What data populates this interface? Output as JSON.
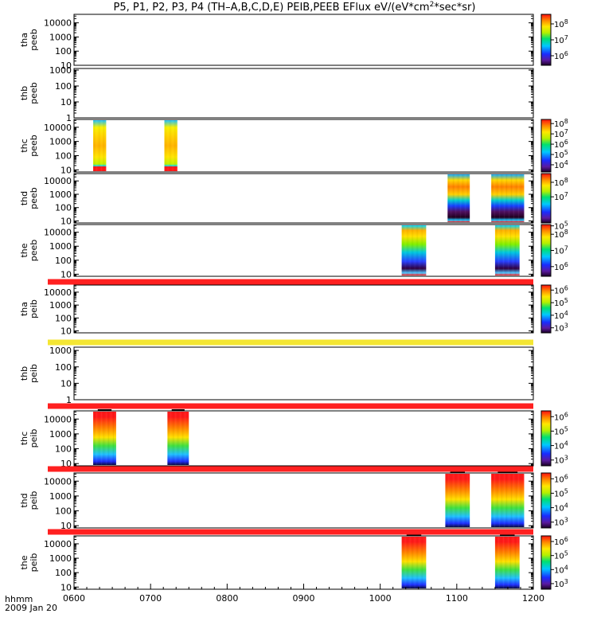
{
  "chart_data": {
    "type": "heatmap",
    "title_main": "P5, P1, P2, P3, P4 (TH–A,B,C,D,E) PEIB,PEEB EFlux eV/(eV*cm",
    "title_sup": "2",
    "title_tail": "*sec*sr)",
    "x_axis": {
      "label": "hhmm",
      "date": "2009 Jan 20",
      "ticks": [
        "0600",
        "0700",
        "0800",
        "0900",
        "1000",
        "1100",
        "1200"
      ],
      "range_hours": [
        6,
        12
      ]
    },
    "panels": [
      {
        "probe": "tha",
        "product": "peeb",
        "yticks": [
          "10",
          "100",
          "1000",
          "10000"
        ],
        "ylog_range": [
          1,
          4.6
        ],
        "cbar": {
          "labels": [
            "10^6",
            "10^7",
            "10^8"
          ],
          "range_log": [
            5.4,
            8.6
          ]
        },
        "bars": [],
        "blocks": []
      },
      {
        "probe": "thb",
        "product": "peeb",
        "yticks": [
          "1",
          "10",
          "100",
          "1000"
        ],
        "ylog_range": [
          0,
          3.1
        ],
        "bars": [],
        "blocks": []
      },
      {
        "probe": "thc",
        "product": "peeb",
        "yticks": [
          "10",
          "100",
          "1000",
          "10000"
        ],
        "ylog_range": [
          0.85,
          4.55
        ],
        "cbar": {
          "labels": [
            "10^4",
            "10^5",
            "10^6",
            "10^7",
            "10^8"
          ],
          "range_log": [
            3.3,
            8.4
          ]
        },
        "bars": [],
        "blocks": [
          {
            "start": 6.25,
            "end": 6.42,
            "palette": "thc_peeb"
          },
          {
            "start": 7.18,
            "end": 7.35,
            "palette": "thc_peeb"
          }
        ]
      },
      {
        "probe": "thd",
        "product": "peeb",
        "yticks": [
          "10",
          "100",
          "1000",
          "10000"
        ],
        "ylog_range": [
          0.85,
          4.55
        ],
        "cbar": {
          "labels": [
            "10^5",
            "10^7",
            "10^8"
          ],
          "range_log": [
            5.2,
            8.6
          ]
        },
        "bars": [],
        "blocks": [
          {
            "start": 10.88,
            "end": 11.17,
            "palette": "thd_peeb"
          },
          {
            "start": 11.45,
            "end": 11.88,
            "palette": "thd_peeb"
          }
        ]
      },
      {
        "probe": "the",
        "product": "peeb",
        "yticks": [
          "10",
          "100",
          "1000",
          "10000"
        ],
        "ylog_range": [
          0.85,
          4.55
        ],
        "cbar": {
          "labels": [
            "10^6",
            "10^7",
            "10^8"
          ],
          "range_log": [
            5.4,
            8.6
          ]
        },
        "bars": [],
        "blocks": [
          {
            "start": 10.28,
            "end": 10.6,
            "palette": "the_peeb"
          },
          {
            "start": 11.5,
            "end": 11.82,
            "palette": "the_peeb"
          }
        ]
      },
      {
        "probe": "tha",
        "product": "peib",
        "yticks": [
          "10",
          "100",
          "1000",
          "10000"
        ],
        "ylog_range": [
          0.85,
          4.55
        ],
        "cbar": {
          "labels": [
            "10^3",
            "10^4",
            "10^5",
            "10^6"
          ],
          "range_log": [
            2.6,
            6.4
          ]
        },
        "bars": [
          {
            "color": "#ff2020"
          }
        ],
        "blocks": []
      },
      {
        "probe": "thb",
        "product": "peib",
        "yticks": [
          "1",
          "10",
          "100",
          "1000"
        ],
        "ylog_range": [
          0,
          3.2
        ],
        "bars": [
          {
            "color": "#f4e633"
          }
        ],
        "blocks": []
      },
      {
        "probe": "thc",
        "product": "peib",
        "yticks": [
          "10",
          "100",
          "1000",
          "10000"
        ],
        "ylog_range": [
          0.85,
          4.55
        ],
        "cbar": {
          "labels": [
            "10^3",
            "10^4",
            "10^5",
            "10^6"
          ],
          "range_log": [
            2.6,
            6.4
          ]
        },
        "bars": [
          {
            "color": "#ff2020"
          }
        ],
        "blocks": [
          {
            "start": 6.25,
            "end": 6.55,
            "palette": "peib"
          },
          {
            "start": 7.22,
            "end": 7.5,
            "palette": "peib"
          }
        ]
      },
      {
        "probe": "thd",
        "product": "peib",
        "yticks": [
          "10",
          "100",
          "1000",
          "10000"
        ],
        "ylog_range": [
          0.85,
          4.55
        ],
        "cbar": {
          "labels": [
            "10^3",
            "10^4",
            "10^5",
            "10^6"
          ],
          "range_log": [
            2.6,
            6.4
          ]
        },
        "bars": [
          {
            "color": "#ff2020"
          }
        ],
        "blocks": [
          {
            "start": 10.85,
            "end": 11.17,
            "palette": "peib"
          },
          {
            "start": 11.45,
            "end": 11.88,
            "palette": "peib"
          }
        ]
      },
      {
        "probe": "the",
        "product": "peib",
        "yticks": [
          "10",
          "100",
          "1000",
          "10000"
        ],
        "ylog_range": [
          0.85,
          4.55
        ],
        "cbar": {
          "labels": [
            "10^3",
            "10^4",
            "10^5",
            "10^6"
          ],
          "range_log": [
            2.6,
            6.4
          ]
        },
        "bars": [
          {
            "color": "#ff2020"
          }
        ],
        "blocks": [
          {
            "start": 10.28,
            "end": 10.6,
            "palette": "peib"
          },
          {
            "start": 11.5,
            "end": 11.82,
            "palette": "peib"
          }
        ]
      }
    ]
  }
}
